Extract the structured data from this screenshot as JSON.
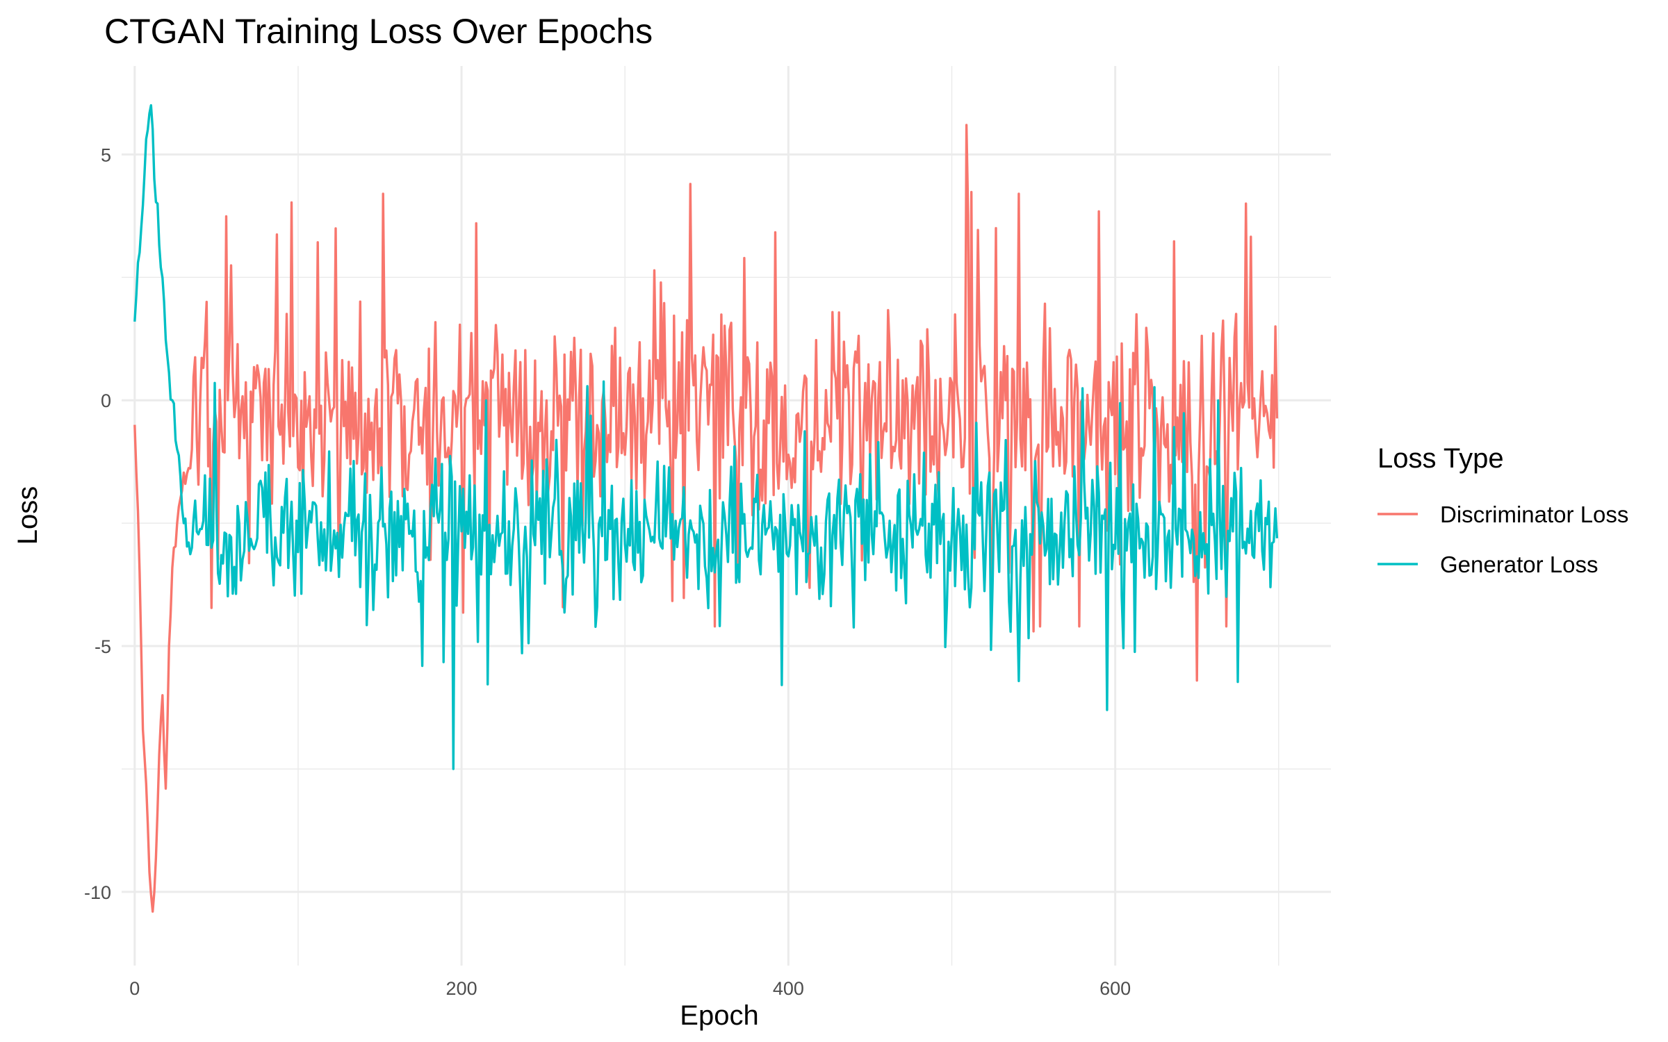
{
  "chart_data": {
    "type": "line",
    "title": "CTGAN Training Loss Over Epochs",
    "xlabel": "Epoch",
    "ylabel": "Loss",
    "xlim": [
      -8,
      732
    ],
    "ylim": [
      -11.5,
      6.8
    ],
    "x_ticks": [
      0,
      200,
      400,
      600
    ],
    "y_ticks": [
      5,
      0,
      -5,
      -10
    ],
    "x_tick_labels": [
      "0",
      "200",
      "400",
      "600"
    ],
    "y_tick_labels": [
      "5",
      "0",
      "-5",
      "-10"
    ],
    "grid": true,
    "legend": {
      "title": "Loss Type",
      "position": "right"
    },
    "epochs": {
      "start": 0,
      "end": 699,
      "step": 1
    },
    "series": [
      {
        "name": "Discriminator Loss",
        "color": "#F8766D",
        "description": "Starts near -0.5, dips to about -10.4 near epoch 11, recovers to ~-5 by epoch 20, then oscillates roughly between -4 and 3 with spikes up to ~5.6 near epoch 509 and down to ~-5.7 near epoch 650.",
        "keypoints": [
          [
            0,
            -0.5
          ],
          [
            3,
            -3.5
          ],
          [
            5,
            -6.7
          ],
          [
            7,
            -7.8
          ],
          [
            9,
            -9.6
          ],
          [
            11,
            -10.4
          ],
          [
            13,
            -9.3
          ],
          [
            15,
            -7.2
          ],
          [
            17,
            -6.0
          ],
          [
            19,
            -7.9
          ],
          [
            21,
            -5.0
          ],
          [
            24,
            -3.0
          ],
          [
            28,
            -2.0
          ],
          [
            35,
            -1.0
          ],
          [
            50,
            0.2
          ],
          [
            100,
            0.3
          ],
          [
            152,
            4.2
          ],
          [
            209,
            3.6
          ],
          [
            340,
            4.4
          ],
          [
            509,
            5.6
          ],
          [
            550,
            -4.7
          ],
          [
            650,
            -5.7
          ],
          [
            680,
            4.0
          ],
          [
            699,
            -0.5
          ]
        ],
        "noise": {
          "mean": -0.3,
          "amplitude": 1.9,
          "spike_max": 4.3,
          "spike_min": -4.6
        }
      },
      {
        "name": "Generator Loss",
        "color": "#00BFC4",
        "description": "Starts near 1.6, rises to a peak of about 6.0 near epoch 10, falls to around -3 by epoch 35, then oscillates roughly between -5 and 0 with a minimum of ~-7.5 near epoch 195 and ~-6.3 near epoch 595.",
        "keypoints": [
          [
            0,
            1.6
          ],
          [
            2,
            2.8
          ],
          [
            4,
            3.5
          ],
          [
            6,
            4.6
          ],
          [
            8,
            5.5
          ],
          [
            10,
            6.0
          ],
          [
            12,
            4.5
          ],
          [
            14,
            4.0
          ],
          [
            16,
            2.7
          ],
          [
            18,
            2.0
          ],
          [
            20,
            0.9
          ],
          [
            23,
            0.0
          ],
          [
            26,
            -1.0
          ],
          [
            30,
            -2.5
          ],
          [
            35,
            -3.0
          ],
          [
            100,
            -2.0
          ],
          [
            140,
            -2.5
          ],
          [
            195,
            -7.5
          ],
          [
            300,
            -3.0
          ],
          [
            440,
            -3.0
          ],
          [
            595,
            -6.3
          ],
          [
            640,
            -1.5
          ],
          [
            699,
            -2.5
          ]
        ],
        "noise": {
          "mean": -2.7,
          "amplitude": 1.3,
          "spike_max": 0.9,
          "spike_min": -5.9
        }
      }
    ]
  }
}
